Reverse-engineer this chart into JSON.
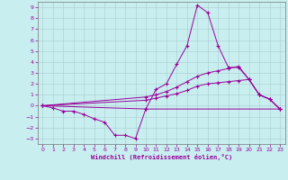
{
  "background_color": "#c8eef0",
  "grid_color": "#b0c8c8",
  "line_color": "#990099",
  "xlabel": "Windchill (Refroidissement éolien,°C)",
  "xlim": [
    -0.5,
    23.5
  ],
  "ylim": [
    -3.5,
    9.5
  ],
  "xticks": [
    0,
    1,
    2,
    3,
    4,
    5,
    6,
    7,
    8,
    9,
    10,
    11,
    12,
    13,
    14,
    15,
    16,
    17,
    18,
    19,
    20,
    21,
    22,
    23
  ],
  "yticks": [
    -3,
    -2,
    -1,
    0,
    1,
    2,
    3,
    4,
    5,
    6,
    7,
    8,
    9
  ],
  "series": [
    {
      "x": [
        0,
        1,
        2,
        3,
        4,
        5,
        6,
        7,
        8,
        9,
        10,
        11,
        12,
        13,
        14,
        15,
        16,
        17,
        18,
        19,
        20,
        21,
        22,
        23
      ],
      "y": [
        0,
        -0.2,
        -0.5,
        -0.5,
        -0.8,
        -1.2,
        -1.5,
        -2.7,
        -2.7,
        -3.0,
        -0.3,
        1.5,
        2.0,
        3.8,
        5.5,
        9.2,
        8.5,
        5.5,
        3.5,
        3.5,
        2.4,
        1.0,
        0.6,
        -0.3
      ]
    },
    {
      "x": [
        0,
        10,
        11,
        12,
        13,
        14,
        15,
        16,
        17,
        18,
        19,
        20,
        21,
        22,
        23
      ],
      "y": [
        0,
        0.8,
        1.0,
        1.3,
        1.7,
        2.2,
        2.7,
        3.0,
        3.2,
        3.4,
        3.6,
        2.4,
        1.0,
        0.6,
        -0.3
      ]
    },
    {
      "x": [
        0,
        10,
        11,
        12,
        13,
        14,
        15,
        16,
        17,
        18,
        19,
        20,
        21,
        22,
        23
      ],
      "y": [
        0,
        0.5,
        0.7,
        0.9,
        1.1,
        1.4,
        1.8,
        2.0,
        2.1,
        2.2,
        2.3,
        2.4,
        1.0,
        0.6,
        -0.3
      ]
    },
    {
      "x": [
        0,
        10,
        23
      ],
      "y": [
        0,
        -0.3,
        -0.3
      ]
    }
  ]
}
